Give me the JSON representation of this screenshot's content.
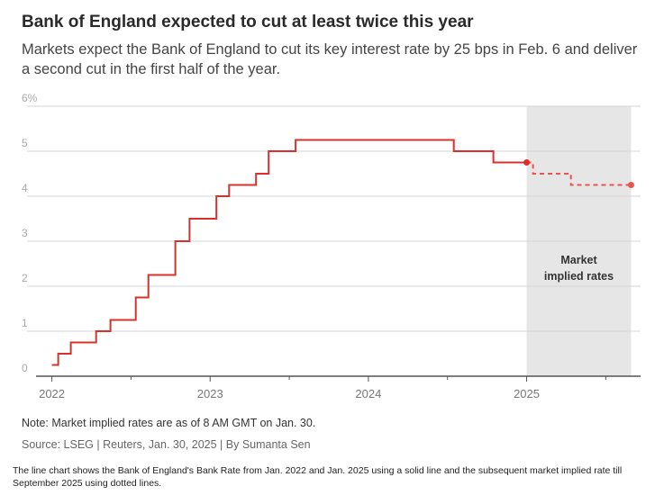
{
  "title": "Bank of England expected to cut at least twice this year",
  "subtitle": "Markets expect the Bank of England to cut its key interest rate by 25 bps in Feb. 6 and deliver a second cut in the first half of the year.",
  "note": "Note: Market implied rates are as of 8 AM GMT on Jan. 30.",
  "source": "Source: LSEG | Reuters, Jan. 30, 2025 | By Sumanta Sen",
  "caption": "The line chart shows the Bank of England's Bank Rate from Jan. 2022 and Jan. 2025 using a solid line and the subsequent market implied rate till September 2025 using dotted lines.",
  "chart_data": {
    "type": "line",
    "title": "Bank of England expected to cut at least twice this year",
    "xlabel": "",
    "ylabel": "",
    "x_ticks": [
      {
        "label": "2022",
        "value": 2022.0
      },
      {
        "label": "2023",
        "value": 2023.0
      },
      {
        "label": "2024",
        "value": 2024.0
      },
      {
        "label": "2025",
        "value": 2025.0
      }
    ],
    "y_ticks": [
      {
        "label": "0",
        "value": 0
      },
      {
        "label": "1",
        "value": 1
      },
      {
        "label": "2",
        "value": 2
      },
      {
        "label": "3",
        "value": 3
      },
      {
        "label": "4",
        "value": 4
      },
      {
        "label": "5",
        "value": 5
      },
      {
        "label": "6%",
        "value": 6
      }
    ],
    "xlim": [
      2021.9,
      2025.72
    ],
    "ylim": [
      0,
      6
    ],
    "grid": true,
    "shaded_region": {
      "x_start": 2025.0,
      "x_end": 2025.66,
      "label_line1": "Market",
      "label_line2": "implied rates"
    },
    "colors": {
      "line": "#d9302b",
      "implied": "#e8554f",
      "shade": "#e6e6e6",
      "grid": "#d4d4d4",
      "axis": "#555555"
    },
    "series": [
      {
        "style": "solid",
        "x": [
          2022.0,
          2022.04,
          2022.04,
          2022.12,
          2022.12,
          2022.28,
          2022.28,
          2022.37,
          2022.37,
          2022.53,
          2022.53,
          2022.61,
          2022.61,
          2022.78,
          2022.78,
          2022.87,
          2022.87,
          2023.04,
          2023.04,
          2023.12,
          2023.12,
          2023.29,
          2023.29,
          2023.37,
          2023.37,
          2023.54,
          2023.54,
          2024.54,
          2024.54,
          2024.79,
          2024.79,
          2025.0
        ],
        "values": [
          0.25,
          0.25,
          0.5,
          0.5,
          0.75,
          0.75,
          1.0,
          1.0,
          1.25,
          1.25,
          1.75,
          1.75,
          2.25,
          2.25,
          3.0,
          3.0,
          3.5,
          3.5,
          4.0,
          4.0,
          4.25,
          4.25,
          4.5,
          4.5,
          5.0,
          5.0,
          5.25,
          5.25,
          5.0,
          5.0,
          4.75,
          4.75
        ]
      },
      {
        "style": "dotted",
        "x": [
          2025.0,
          2025.04,
          2025.04,
          2025.28,
          2025.28,
          2025.66
        ],
        "values": [
          4.75,
          4.75,
          4.5,
          4.5,
          4.25,
          4.25
        ]
      }
    ]
  }
}
